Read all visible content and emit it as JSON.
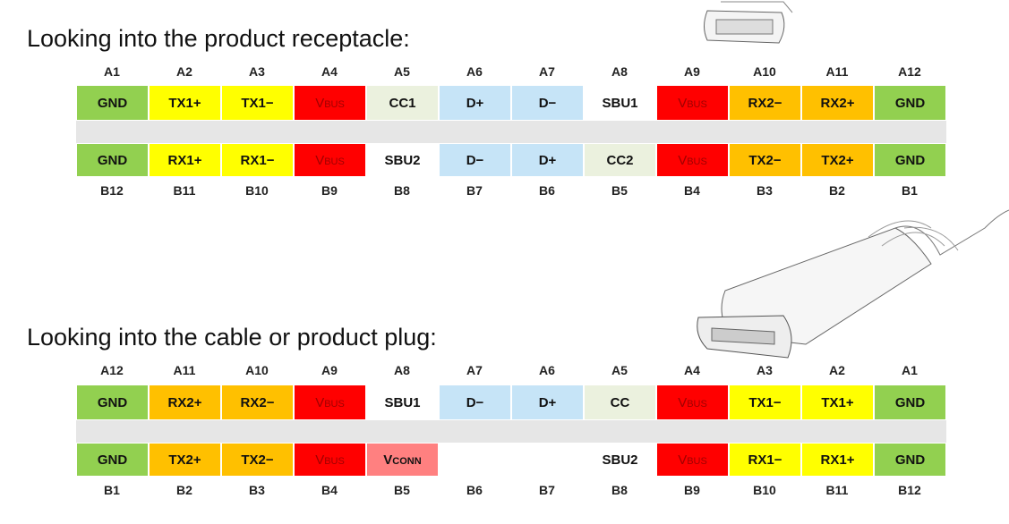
{
  "sections": [
    {
      "title": "Looking into the product receptacle:",
      "top_pins": [
        "A1",
        "A2",
        "A3",
        "A4",
        "A5",
        "A6",
        "A7",
        "A8",
        "A9",
        "A10",
        "A11",
        "A12"
      ],
      "top_row": [
        {
          "label": "GND",
          "color": "#92d050"
        },
        {
          "label": "TX1+",
          "color": "#ffff00"
        },
        {
          "label": "TX1−",
          "color": "#ffff00"
        },
        {
          "label": "Vbus",
          "color": "#ff0000"
        },
        {
          "label": "CC1",
          "color": "#ebf1de"
        },
        {
          "label": "D+",
          "color": "#c6e4f7"
        },
        {
          "label": "D−",
          "color": "#c6e4f7"
        },
        {
          "label": "SBU1",
          "color": "#ffffff"
        },
        {
          "label": "Vbus",
          "color": "#ff0000"
        },
        {
          "label": "RX2−",
          "color": "#ffc000"
        },
        {
          "label": "RX2+",
          "color": "#ffc000"
        },
        {
          "label": "GND",
          "color": "#92d050"
        }
      ],
      "bottom_row": [
        {
          "label": "GND",
          "color": "#92d050"
        },
        {
          "label": "RX1+",
          "color": "#ffff00"
        },
        {
          "label": "RX1−",
          "color": "#ffff00"
        },
        {
          "label": "Vbus",
          "color": "#ff0000"
        },
        {
          "label": "SBU2",
          "color": "#ffffff"
        },
        {
          "label": "D−",
          "color": "#c6e4f7"
        },
        {
          "label": "D+",
          "color": "#c6e4f7"
        },
        {
          "label": "CC2",
          "color": "#ebf1de"
        },
        {
          "label": "Vbus",
          "color": "#ff0000"
        },
        {
          "label": "TX2−",
          "color": "#ffc000"
        },
        {
          "label": "TX2+",
          "color": "#ffc000"
        },
        {
          "label": "GND",
          "color": "#92d050"
        }
      ],
      "bottom_pins": [
        "B12",
        "B11",
        "B10",
        "B9",
        "B8",
        "B7",
        "B6",
        "B5",
        "B4",
        "B3",
        "B2",
        "B1"
      ]
    },
    {
      "title": "Looking into the cable or product plug:",
      "top_pins": [
        "A12",
        "A11",
        "A10",
        "A9",
        "A8",
        "A7",
        "A6",
        "A5",
        "A4",
        "A3",
        "A2",
        "A1"
      ],
      "top_row": [
        {
          "label": "GND",
          "color": "#92d050"
        },
        {
          "label": "RX2+",
          "color": "#ffc000"
        },
        {
          "label": "RX2−",
          "color": "#ffc000"
        },
        {
          "label": "Vbus",
          "color": "#ff0000"
        },
        {
          "label": "SBU1",
          "color": "#ffffff"
        },
        {
          "label": "D−",
          "color": "#c6e4f7"
        },
        {
          "label": "D+",
          "color": "#c6e4f7"
        },
        {
          "label": "CC",
          "color": "#ebf1de"
        },
        {
          "label": "Vbus",
          "color": "#ff0000"
        },
        {
          "label": "TX1−",
          "color": "#ffff00"
        },
        {
          "label": "TX1+",
          "color": "#ffff00"
        },
        {
          "label": "GND",
          "color": "#92d050"
        }
      ],
      "bottom_row": [
        {
          "label": "GND",
          "color": "#92d050"
        },
        {
          "label": "TX2+",
          "color": "#ffc000"
        },
        {
          "label": "TX2−",
          "color": "#ffc000"
        },
        {
          "label": "Vbus",
          "color": "#ff0000"
        },
        {
          "label": "Vconn",
          "color": "#ff8080"
        },
        {
          "color": "#ffffff"
        },
        {
          "color": "#ffffff"
        },
        {
          "label": "SBU2",
          "color": "#ffffff"
        },
        {
          "label": "Vbus",
          "color": "#ff0000"
        },
        {
          "label": "RX1−",
          "color": "#ffff00"
        },
        {
          "label": "RX1+",
          "color": "#ffff00"
        },
        {
          "label": "GND",
          "color": "#92d050"
        }
      ],
      "bottom_pins": [
        "B1",
        "B2",
        "B3",
        "B4",
        "B5",
        "B6",
        "B7",
        "B8",
        "B9",
        "B10",
        "B11",
        "B12"
      ]
    }
  ]
}
